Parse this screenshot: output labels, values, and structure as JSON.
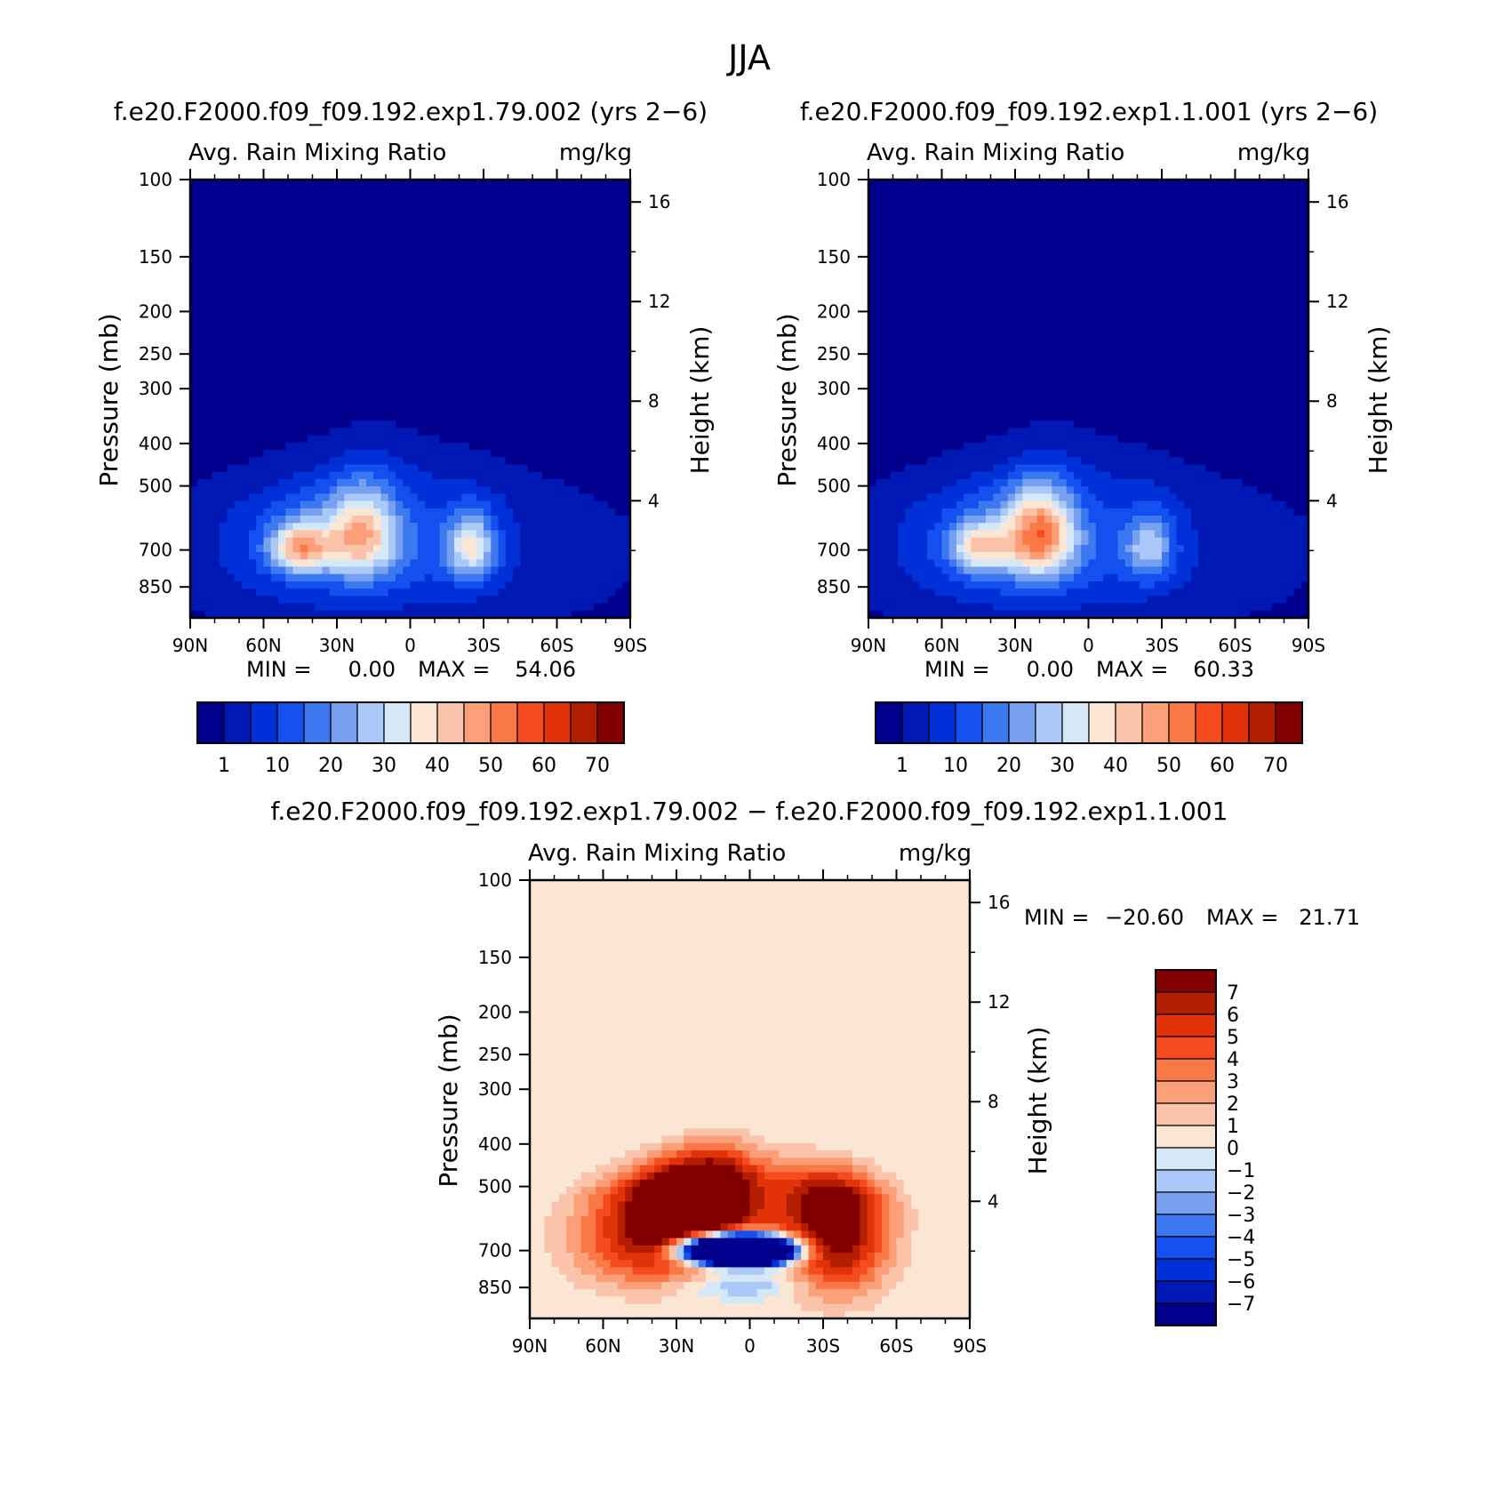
{
  "figure": {
    "title": "JJA",
    "diff_title": "f.e20.F2000.f09_f09.192.exp1.79.002 − f.e20.F2000.f09_f09.192.exp1.1.001"
  },
  "panels": [
    {
      "case_title": "f.e20.F2000.f09_f09.192.exp1.79.002 (yrs 2−6)",
      "left_title": "Avg. Rain Mixing Ratio",
      "right_title": "mg/kg",
      "ylabel": "Pressure (mb)",
      "ylabel_right": "Height (km)",
      "min_label": "MIN =",
      "min_value": "0.00",
      "max_label": "MAX =",
      "max_value": "54.06"
    },
    {
      "case_title": "f.e20.F2000.f09_f09.192.exp1.1.001 (yrs 2−6)",
      "left_title": "Avg. Rain Mixing Ratio",
      "right_title": "mg/kg",
      "ylabel": "Pressure (mb)",
      "ylabel_right": "Height (km)",
      "min_label": "MIN =",
      "min_value": "0.00",
      "max_label": "MAX =",
      "max_value": "60.33"
    },
    {
      "case_title": "",
      "left_title": "Avg. Rain Mixing Ratio",
      "right_title": "mg/kg",
      "ylabel": "Pressure (mb)",
      "ylabel_right": "Height (km)",
      "min_label": "MIN =",
      "min_value": "−20.60",
      "max_label": "MAX =",
      "max_value": "21.71"
    }
  ],
  "axes": {
    "pressure_ticks": [
      "100",
      "150",
      "200",
      "250",
      "300",
      "400",
      "500",
      "700",
      "850"
    ],
    "height_ticks": [
      "16",
      "12",
      "8",
      "4"
    ],
    "lat_ticks": [
      "90N",
      "60N",
      "30N",
      "0",
      "30S",
      "60S",
      "90S"
    ]
  },
  "colorbars": {
    "abs_labels": [
      "1",
      "10",
      "20",
      "30",
      "40",
      "50",
      "60",
      "70"
    ],
    "abs_colors": [
      "#00008c",
      "#0018b4",
      "#0030d8",
      "#1450f0",
      "#3c78f0",
      "#78a0f0",
      "#aac8f8",
      "#d4e8f8",
      "#fbe6d4",
      "#fac3aa",
      "#fa9f78",
      "#fa7846",
      "#f54b1e",
      "#e1320a",
      "#b41e00",
      "#820000"
    ],
    "diff_labels": [
      "7",
      "6",
      "5",
      "4",
      "3",
      "2",
      "1",
      "0",
      "−1",
      "−2",
      "−3",
      "−4",
      "−5",
      "−6",
      "−7"
    ],
    "diff_colors": [
      "#820000",
      "#b41e00",
      "#e1320a",
      "#f54b1e",
      "#fa7846",
      "#fa9f78",
      "#fac3aa",
      "#fbe6d4",
      "#d4e8f8",
      "#aac8f8",
      "#78a0f0",
      "#3c78f0",
      "#1450f0",
      "#0030d8",
      "#0018b4",
      "#00008c"
    ]
  },
  "chart_data": [
    {
      "type": "heatmap",
      "title": "f.e20.F2000.f09_f09.192.exp1.79.002 (yrs 2−6)",
      "variable": "Avg. Rain Mixing Ratio",
      "units": "mg/kg",
      "xlabel": "",
      "ylabel": "Pressure (mb)",
      "ylabel_right": "Height (km)",
      "x_ticks": [
        "90N",
        "60N",
        "30N",
        "0",
        "30S",
        "60S",
        "90S"
      ],
      "y_ticks": [
        100,
        150,
        200,
        250,
        300,
        400,
        500,
        700,
        850
      ],
      "ylim": [
        100,
        1000
      ],
      "contour_levels": [
        1,
        5,
        10,
        15,
        20,
        25,
        30,
        35,
        40,
        45,
        50,
        55,
        60,
        65,
        70
      ],
      "min": 0.0,
      "max": 54.06
    },
    {
      "type": "heatmap",
      "title": "f.e20.F2000.f09_f09.192.exp1.1.001 (yrs 2−6)",
      "variable": "Avg. Rain Mixing Ratio",
      "units": "mg/kg",
      "xlabel": "",
      "ylabel": "Pressure (mb)",
      "ylabel_right": "Height (km)",
      "x_ticks": [
        "90N",
        "60N",
        "30N",
        "0",
        "30S",
        "60S",
        "90S"
      ],
      "y_ticks": [
        100,
        150,
        200,
        250,
        300,
        400,
        500,
        700,
        850
      ],
      "ylim": [
        100,
        1000
      ],
      "contour_levels": [
        1,
        5,
        10,
        15,
        20,
        25,
        30,
        35,
        40,
        45,
        50,
        55,
        60,
        65,
        70
      ],
      "min": 0.0,
      "max": 60.33
    },
    {
      "type": "heatmap",
      "title": "f.e20.F2000.f09_f09.192.exp1.79.002 − f.e20.F2000.f09_f09.192.exp1.1.001",
      "variable": "Avg. Rain Mixing Ratio",
      "units": "mg/kg",
      "xlabel": "",
      "ylabel": "Pressure (mb)",
      "ylabel_right": "Height (km)",
      "x_ticks": [
        "90N",
        "60N",
        "30N",
        "0",
        "30S",
        "60S",
        "90S"
      ],
      "y_ticks": [
        100,
        150,
        200,
        250,
        300,
        400,
        500,
        700,
        850
      ],
      "ylim": [
        100,
        1000
      ],
      "contour_levels": [
        -7,
        -6,
        -5,
        -4,
        -3,
        -2,
        -1,
        0,
        1,
        2,
        3,
        4,
        5,
        6,
        7
      ],
      "min": -20.6,
      "max": 21.71
    }
  ]
}
